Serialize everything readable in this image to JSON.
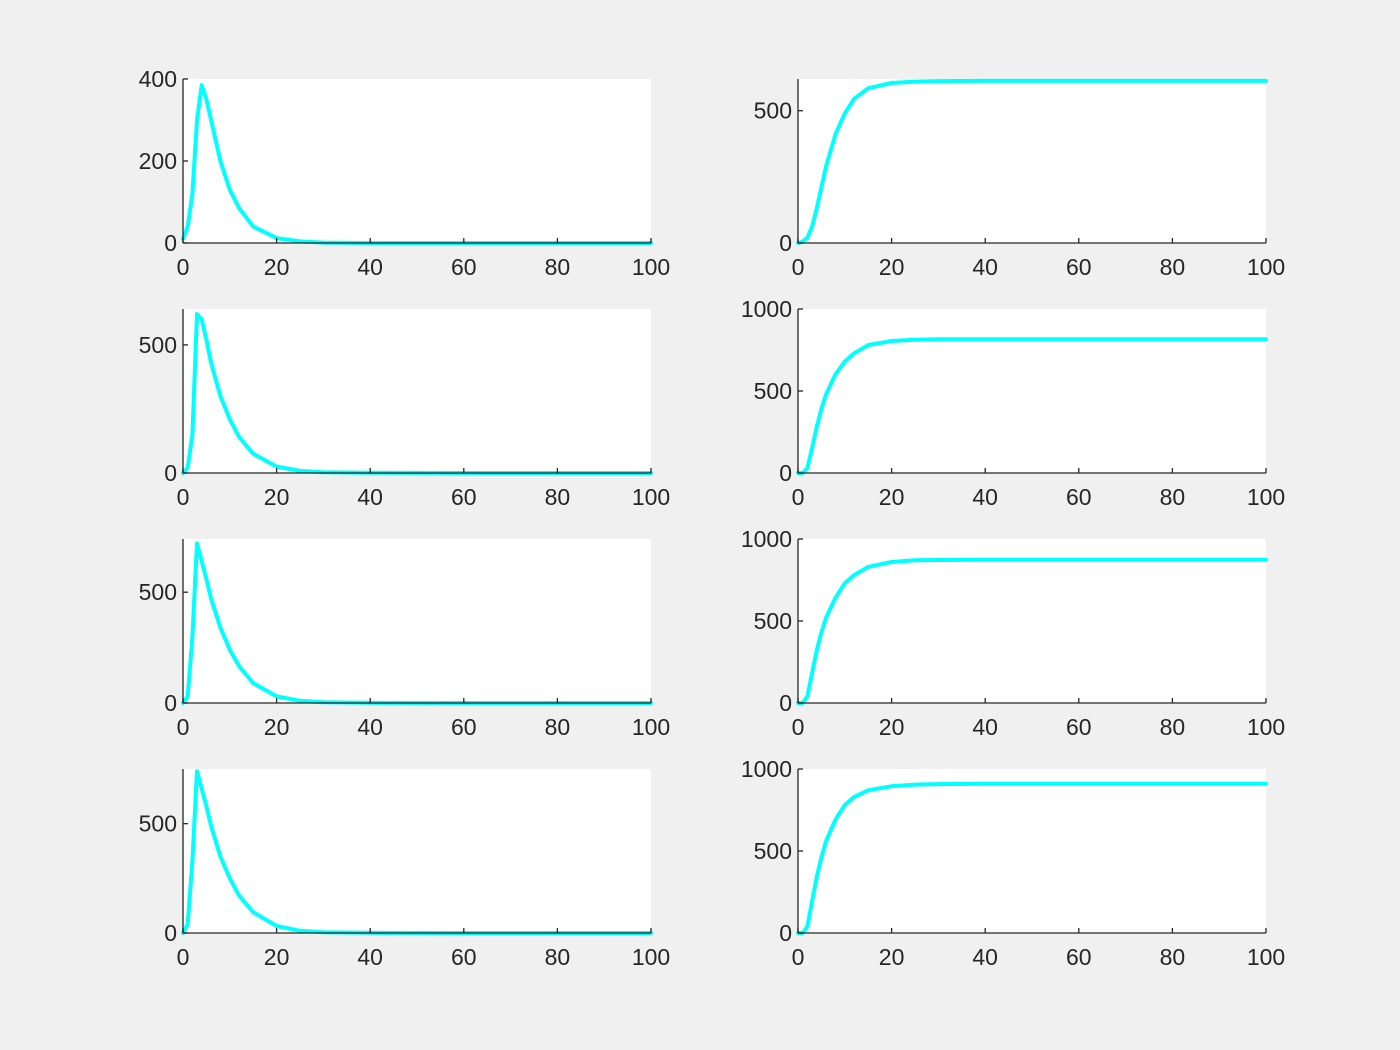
{
  "figure": {
    "background": "#f0f0f0",
    "axes_background": "#ffffff",
    "line_color": "#00ffff",
    "axis_color": "#262626"
  },
  "chart_data": [
    {
      "type": "line",
      "title": "",
      "xlabel": "",
      "ylabel": "",
      "xlim": [
        0,
        100
      ],
      "ylim": [
        0,
        400
      ],
      "xticks": [
        0,
        20,
        40,
        60,
        80,
        100
      ],
      "yticks": [
        0,
        200,
        400
      ],
      "series": [
        {
          "x": [
            0,
            1,
            2,
            3,
            4,
            5,
            6,
            8,
            10,
            12,
            15,
            20,
            25,
            30,
            40,
            60,
            80,
            100
          ],
          "values": [
            10,
            40,
            120,
            300,
            385,
            350,
            300,
            200,
            130,
            85,
            40,
            12,
            4,
            1,
            0,
            0,
            0,
            0
          ]
        }
      ]
    },
    {
      "type": "line",
      "title": "",
      "xlabel": "",
      "ylabel": "",
      "xlim": [
        0,
        100
      ],
      "ylim": [
        0,
        620
      ],
      "xticks": [
        0,
        20,
        40,
        60,
        80,
        100
      ],
      "yticks": [
        0,
        500
      ],
      "series": [
        {
          "x": [
            0,
            1,
            2,
            3,
            4,
            5,
            6,
            8,
            10,
            12,
            15,
            20,
            25,
            30,
            40,
            60,
            80,
            100
          ],
          "values": [
            0,
            5,
            20,
            60,
            130,
            210,
            290,
            410,
            490,
            545,
            585,
            605,
            610,
            612,
            613,
            613,
            613,
            613
          ]
        }
      ]
    },
    {
      "type": "line",
      "title": "",
      "xlabel": "",
      "ylabel": "",
      "xlim": [
        0,
        100
      ],
      "ylim": [
        0,
        640
      ],
      "xticks": [
        0,
        20,
        40,
        60,
        80,
        100
      ],
      "yticks": [
        0,
        500
      ],
      "series": [
        {
          "x": [
            0,
            1,
            2,
            3,
            4,
            5,
            6,
            8,
            10,
            12,
            15,
            20,
            25,
            30,
            40,
            60,
            80,
            100
          ],
          "values": [
            0,
            20,
            150,
            620,
            600,
            520,
            430,
            300,
            210,
            140,
            75,
            25,
            8,
            3,
            1,
            0,
            0,
            0
          ]
        }
      ]
    },
    {
      "type": "line",
      "title": "",
      "xlabel": "",
      "ylabel": "",
      "xlim": [
        0,
        100
      ],
      "ylim": [
        0,
        1000
      ],
      "xticks": [
        0,
        20,
        40,
        60,
        80,
        100
      ],
      "yticks": [
        0,
        500,
        1000
      ],
      "series": [
        {
          "x": [
            0,
            1,
            2,
            3,
            4,
            5,
            6,
            8,
            10,
            12,
            15,
            20,
            25,
            30,
            40,
            60,
            80,
            100
          ],
          "values": [
            0,
            0,
            30,
            150,
            280,
            390,
            480,
            600,
            680,
            730,
            780,
            805,
            812,
            815,
            816,
            816,
            816,
            816
          ]
        }
      ]
    },
    {
      "type": "line",
      "title": "",
      "xlabel": "",
      "ylabel": "",
      "xlim": [
        0,
        100
      ],
      "ylim": [
        0,
        740
      ],
      "xticks": [
        0,
        20,
        40,
        60,
        80,
        100
      ],
      "yticks": [
        0,
        500
      ],
      "series": [
        {
          "x": [
            0,
            1,
            2,
            3,
            4,
            5,
            6,
            8,
            10,
            12,
            15,
            20,
            25,
            30,
            40,
            60,
            80,
            100
          ],
          "values": [
            0,
            30,
            300,
            720,
            640,
            560,
            470,
            340,
            240,
            165,
            90,
            30,
            10,
            3,
            1,
            0,
            0,
            0
          ]
        }
      ]
    },
    {
      "type": "line",
      "title": "",
      "xlabel": "",
      "ylabel": "",
      "xlim": [
        0,
        100
      ],
      "ylim": [
        0,
        1000
      ],
      "xticks": [
        0,
        20,
        40,
        60,
        80,
        100
      ],
      "yticks": [
        0,
        500,
        1000
      ],
      "series": [
        {
          "x": [
            0,
            1,
            2,
            3,
            4,
            5,
            6,
            8,
            10,
            12,
            15,
            20,
            25,
            30,
            40,
            60,
            80,
            100
          ],
          "values": [
            0,
            0,
            40,
            180,
            320,
            430,
            520,
            640,
            730,
            780,
            830,
            860,
            870,
            872,
            873,
            873,
            873,
            873
          ]
        }
      ]
    },
    {
      "type": "line",
      "title": "",
      "xlabel": "",
      "ylabel": "",
      "xlim": [
        0,
        100
      ],
      "ylim": [
        0,
        750
      ],
      "xticks": [
        0,
        20,
        40,
        60,
        80,
        100
      ],
      "yticks": [
        0,
        500
      ],
      "series": [
        {
          "x": [
            0,
            1,
            2,
            3,
            4,
            5,
            6,
            8,
            10,
            12,
            15,
            20,
            25,
            30,
            40,
            60,
            80,
            100
          ],
          "values": [
            0,
            40,
            330,
            740,
            660,
            580,
            490,
            350,
            250,
            170,
            95,
            32,
            10,
            3,
            1,
            0,
            0,
            0
          ]
        }
      ]
    },
    {
      "type": "line",
      "title": "",
      "xlabel": "",
      "ylabel": "",
      "xlim": [
        0,
        100
      ],
      "ylim": [
        0,
        1000
      ],
      "xticks": [
        0,
        20,
        40,
        60,
        80,
        100
      ],
      "yticks": [
        0,
        500,
        1000
      ],
      "series": [
        {
          "x": [
            0,
            1,
            2,
            3,
            4,
            5,
            6,
            8,
            10,
            12,
            15,
            20,
            25,
            30,
            40,
            60,
            80,
            100
          ],
          "values": [
            0,
            0,
            40,
            190,
            340,
            460,
            560,
            690,
            780,
            830,
            870,
            895,
            905,
            908,
            910,
            910,
            910,
            910
          ]
        }
      ]
    }
  ]
}
